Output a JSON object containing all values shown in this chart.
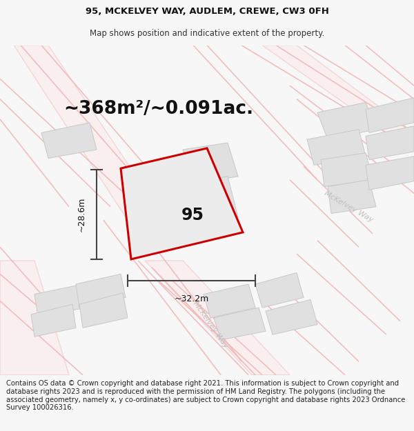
{
  "title_line1": "95, MCKELVEY WAY, AUDLEM, CREWE, CW3 0FH",
  "title_line2": "Map shows position and indicative extent of the property.",
  "area_text": "~368m²/~0.091ac.",
  "label_95": "95",
  "dim_width": "~32.2m",
  "dim_height": "~28.6m",
  "footer_text": "Contains OS data © Crown copyright and database right 2021. This information is subject to Crown copyright and database rights 2023 and is reproduced with the permission of HM Land Registry. The polygons (including the associated geometry, namely x, y co-ordinates) are subject to Crown copyright and database rights 2023 Ordnance Survey 100026316.",
  "bg_color": "#f7f7f7",
  "map_bg": "#f9f9f9",
  "road_outline_color": "#f0b8b8",
  "building_color": "#e0e0e0",
  "building_edge": "#c8c8c8",
  "plot_fill": "#ececec",
  "plot_edge": "#cc0000",
  "dim_line_color": "#444444",
  "road_label_color": "#bbbbbb",
  "mckelveyw_label_color": "#c0c0c0",
  "title_fontsize": 9.5,
  "subtitle_fontsize": 8.5,
  "area_fontsize": 19,
  "label_fontsize": 17,
  "footer_fontsize": 7.2,
  "road_lw": 1.2,
  "road_fill_color": "#fce8e8"
}
